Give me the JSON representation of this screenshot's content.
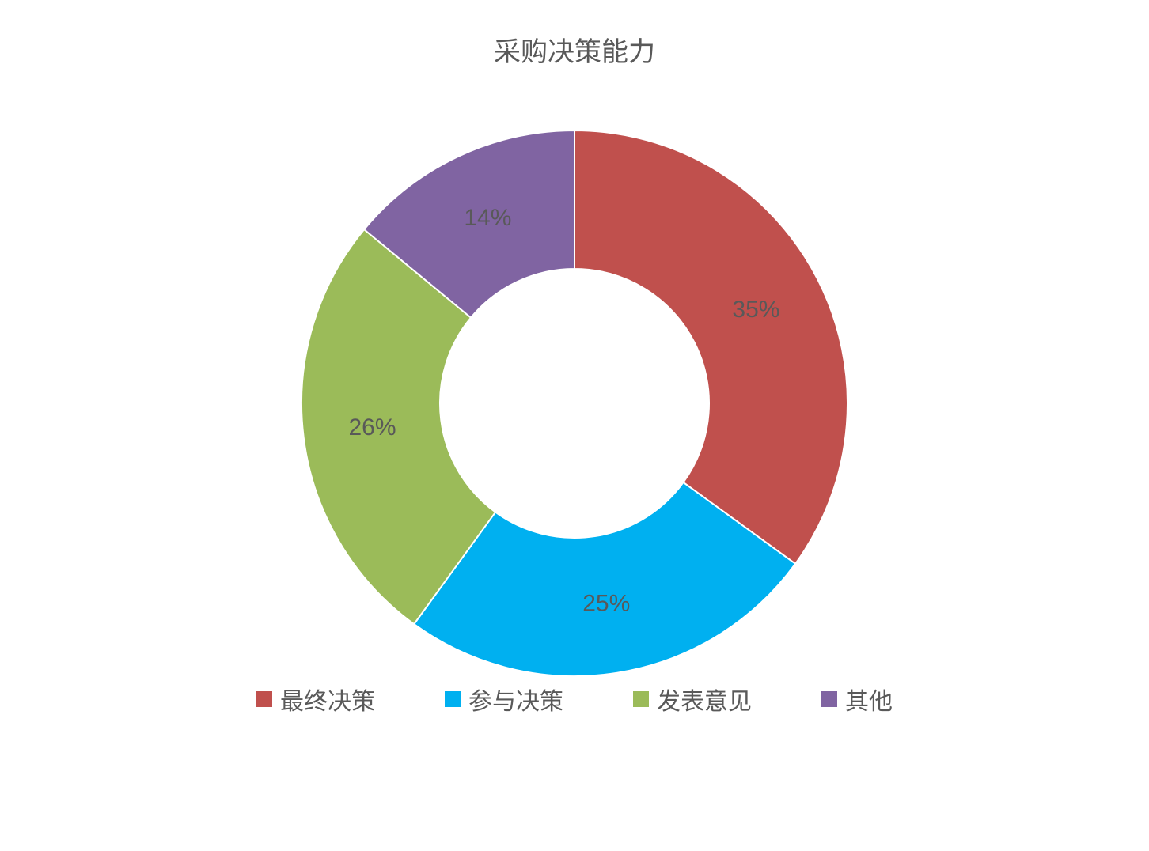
{
  "chart": {
    "type": "donut",
    "title": "采购决策能力",
    "title_fontsize": 34,
    "title_color": "#595959",
    "background_color": "#ffffff",
    "label_fontsize": 30,
    "label_color": "#595959",
    "legend_fontsize": 30,
    "legend_color": "#595959",
    "legend_swatch_size": 20,
    "outer_radius": 345,
    "inner_radius": 170,
    "start_angle_deg": 0,
    "slices": [
      {
        "label": "最终决策",
        "value": 35,
        "percent_text": "35%",
        "color": "#c0504d"
      },
      {
        "label": "参与决策",
        "value": 25,
        "percent_text": "25%",
        "color": "#00b0f0"
      },
      {
        "label": "发表意见",
        "value": 26,
        "percent_text": "26%",
        "color": "#9bbb59"
      },
      {
        "label": "其他",
        "value": 14,
        "percent_text": "14%",
        "color": "#8064a2"
      }
    ]
  }
}
